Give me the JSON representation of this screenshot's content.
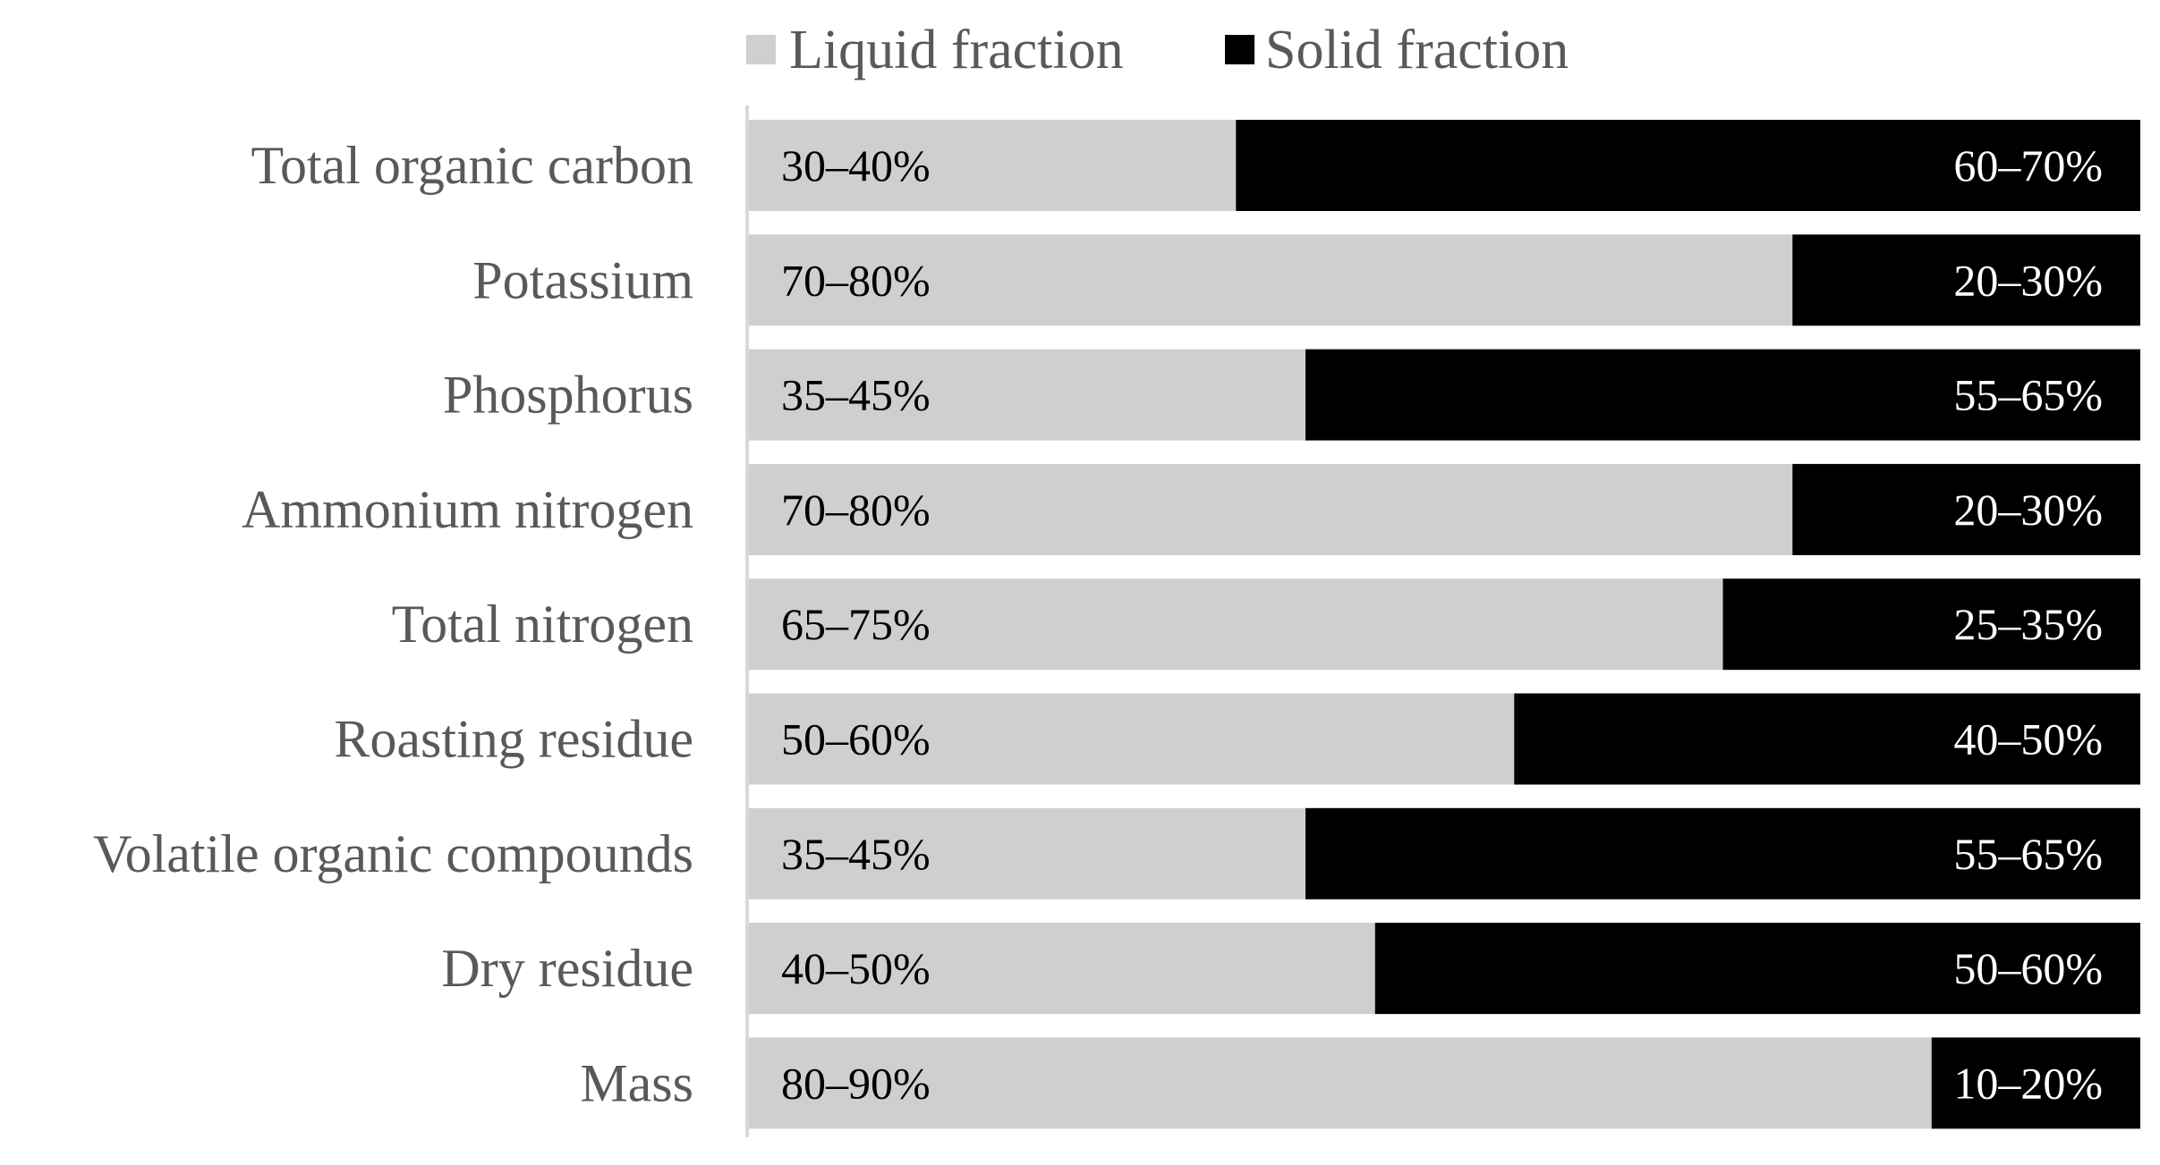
{
  "chart_data": {
    "type": "bar",
    "orientation": "horizontal",
    "stacked": true,
    "normalized": true,
    "categories": [
      "Total organic carbon",
      "Potassium",
      "Phosphorus",
      "Ammonium nitrogen",
      "Total nitrogen",
      "Roasting residue",
      "Volatile organic compounds",
      "Dry residue",
      "Mass"
    ],
    "series": [
      {
        "name": "Liquid fraction",
        "color": "#d0cece",
        "label_color": "#000000",
        "values": [
          35,
          75,
          40,
          75,
          70,
          55,
          40,
          45,
          85
        ],
        "labels": [
          "30–40%",
          "70–80%",
          "35–45%",
          "70–80%",
          "65–75%",
          "50–60%",
          "35–45%",
          "40–50%",
          "80–90%"
        ]
      },
      {
        "name": "Solid fraction",
        "color": "#000000",
        "label_color": "#ffffff",
        "values": [
          65,
          25,
          60,
          25,
          30,
          45,
          60,
          55,
          15
        ],
        "labels": [
          "60–70%",
          "20–30%",
          "55–65%",
          "20–30%",
          "25–35%",
          "40–50%",
          "55–65%",
          "50–60%",
          "10–20%"
        ]
      }
    ],
    "xlim": [
      0,
      100
    ],
    "legend_position": "top",
    "grid": false,
    "axis_color": "#d9d9d9"
  }
}
